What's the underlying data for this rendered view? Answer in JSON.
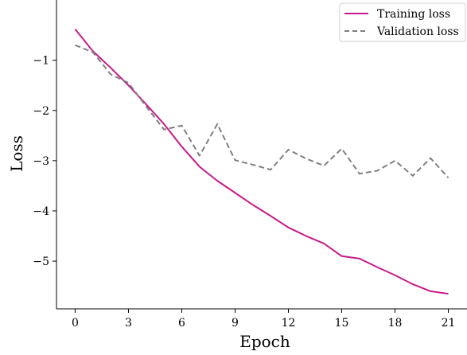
{
  "chart_data": {
    "type": "line",
    "xlabel": "Epoch",
    "ylabel": "Loss",
    "xlim": [
      -1.05,
      22.05
    ],
    "ylim": [
      -5.95,
      0.2
    ],
    "xticks": [
      0,
      3,
      6,
      9,
      12,
      15,
      18,
      21
    ],
    "yticks": [
      -1,
      -2,
      -3,
      -4,
      -5
    ],
    "ytick_labels": [
      "−1",
      "−2",
      "−3",
      "−4",
      "−5"
    ],
    "grid": false,
    "legend": "top-right",
    "x": [
      0,
      1,
      2,
      3,
      4,
      5,
      6,
      7,
      8,
      9,
      10,
      11,
      12,
      13,
      14,
      15,
      16,
      17,
      18,
      19,
      20,
      21
    ],
    "series": [
      {
        "name": "Training loss",
        "color": "#c51b8a",
        "style": "solid",
        "values": [
          -0.38,
          -0.82,
          -1.15,
          -1.5,
          -1.88,
          -2.27,
          -2.72,
          -3.12,
          -3.4,
          -3.64,
          -3.88,
          -4.1,
          -4.33,
          -4.5,
          -4.65,
          -4.9,
          -4.95,
          -5.12,
          -5.28,
          -5.46,
          -5.6,
          -5.65
        ]
      },
      {
        "name": "Validation loss",
        "color": "#808080",
        "style": "dashed",
        "values": [
          -0.7,
          -0.84,
          -1.28,
          -1.45,
          -1.92,
          -2.38,
          -2.3,
          -2.9,
          -2.27,
          -2.99,
          -3.08,
          -3.18,
          -2.78,
          -2.96,
          -3.1,
          -2.76,
          -3.26,
          -3.2,
          -3.0,
          -3.3,
          -2.95,
          -3.34
        ]
      }
    ]
  }
}
